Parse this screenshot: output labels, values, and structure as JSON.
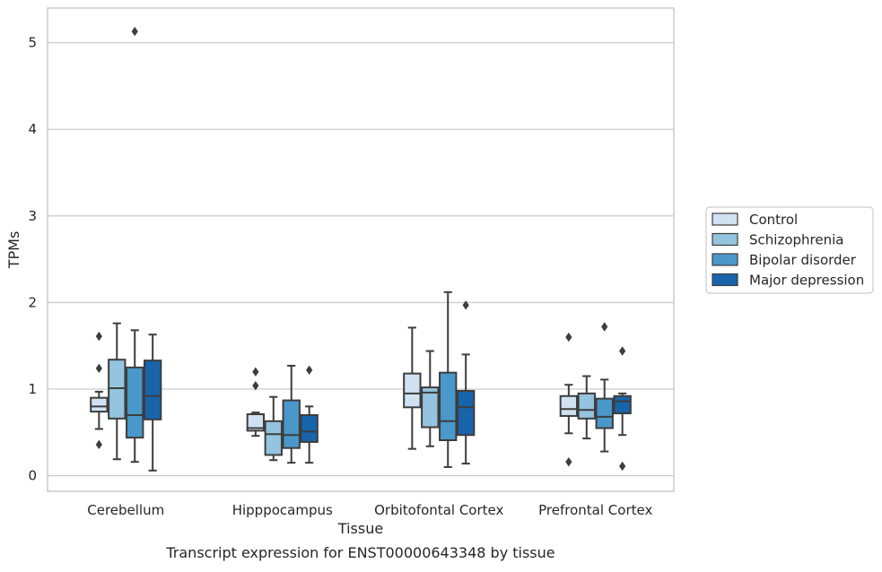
{
  "chart_data": {
    "type": "box",
    "caption": "Transcript expression for ENST00000643348 by tissue",
    "xlabel": "Tissue",
    "ylabel": "TPMs",
    "ylim": [
      -0.18,
      5.4
    ],
    "yticks": [
      0,
      1,
      2,
      3,
      4,
      5
    ],
    "grid": "horizontal",
    "legend_position": "right",
    "categories": [
      "Cerebellum",
      "Hipppocampus",
      "Orbitofontal Cortex",
      "Prefrontal Cortex"
    ],
    "series": [
      {
        "name": "Control",
        "color": "#d0e1f2",
        "boxes": [
          {
            "whisker_low": 0.54,
            "q1": 0.74,
            "median": 0.8,
            "q3": 0.9,
            "whisker_high": 0.97,
            "outliers": [
              1.61,
              1.24,
              0.36
            ]
          },
          {
            "whisker_low": 0.46,
            "q1": 0.52,
            "median": 0.55,
            "q3": 0.71,
            "whisker_high": 0.73,
            "outliers": [
              1.2,
              1.04
            ]
          },
          {
            "whisker_low": 0.31,
            "q1": 0.79,
            "median": 0.95,
            "q3": 1.18,
            "whisker_high": 1.71,
            "outliers": []
          },
          {
            "whisker_low": 0.49,
            "q1": 0.69,
            "median": 0.77,
            "q3": 0.92,
            "whisker_high": 1.05,
            "outliers": [
              1.6,
              0.16
            ]
          }
        ]
      },
      {
        "name": "Schizophrenia",
        "color": "#94c4df",
        "boxes": [
          {
            "whisker_low": 0.19,
            "q1": 0.66,
            "median": 1.01,
            "q3": 1.34,
            "whisker_high": 1.76,
            "outliers": []
          },
          {
            "whisker_low": 0.18,
            "q1": 0.24,
            "median": 0.48,
            "q3": 0.63,
            "whisker_high": 0.91,
            "outliers": []
          },
          {
            "whisker_low": 0.34,
            "q1": 0.56,
            "median": 0.96,
            "q3": 1.02,
            "whisker_high": 1.44,
            "outliers": []
          },
          {
            "whisker_low": 0.43,
            "q1": 0.66,
            "median": 0.76,
            "q3": 0.95,
            "whisker_high": 1.15,
            "outliers": []
          }
        ]
      },
      {
        "name": "Bipolar disorder",
        "color": "#4a98c9",
        "boxes": [
          {
            "whisker_low": 0.16,
            "q1": 0.44,
            "median": 0.7,
            "q3": 1.25,
            "whisker_high": 1.68,
            "outliers": [
              5.13
            ]
          },
          {
            "whisker_low": 0.15,
            "q1": 0.32,
            "median": 0.47,
            "q3": 0.87,
            "whisker_high": 1.27,
            "outliers": []
          },
          {
            "whisker_low": 0.1,
            "q1": 0.41,
            "median": 0.63,
            "q3": 1.19,
            "whisker_high": 2.12,
            "outliers": []
          },
          {
            "whisker_low": 0.28,
            "q1": 0.55,
            "median": 0.68,
            "q3": 0.89,
            "whisker_high": 1.11,
            "outliers": [
              1.72
            ]
          }
        ]
      },
      {
        "name": "Major depression",
        "color": "#1764ab",
        "boxes": [
          {
            "whisker_low": 0.06,
            "q1": 0.65,
            "median": 0.92,
            "q3": 1.33,
            "whisker_high": 1.63,
            "outliers": []
          },
          {
            "whisker_low": 0.15,
            "q1": 0.39,
            "median": 0.51,
            "q3": 0.7,
            "whisker_high": 0.8,
            "outliers": [
              1.22
            ]
          },
          {
            "whisker_low": 0.14,
            "q1": 0.47,
            "median": 0.79,
            "q3": 0.98,
            "whisker_high": 1.4,
            "outliers": [
              1.97
            ]
          },
          {
            "whisker_low": 0.47,
            "q1": 0.72,
            "median": 0.86,
            "q3": 0.92,
            "whisker_high": 0.95,
            "outliers": [
              1.44,
              0.11
            ]
          }
        ]
      }
    ]
  }
}
